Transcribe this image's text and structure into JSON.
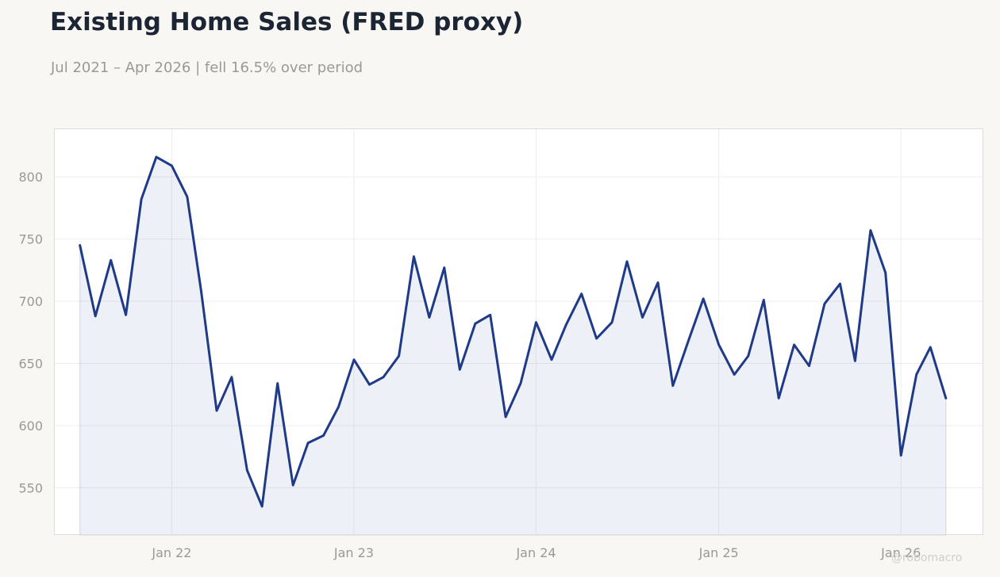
{
  "header": {
    "title": "Existing Home Sales (FRED proxy)",
    "subtitle": "Jul 2021 – Apr 2026 | fell 16.5% over period"
  },
  "watermark": "@robomacro",
  "colors": {
    "line": "#1f3a87",
    "fill": "#1f3a87",
    "background": "#f8f7f4",
    "plot_background": "#ffffff"
  },
  "chart_data": {
    "type": "area",
    "title": "Existing Home Sales (FRED proxy)",
    "subtitle": "Jul 2021 – Apr 2026 | fell 16.5% over period",
    "xlabel": "",
    "ylabel": "",
    "x": [
      "2021-07",
      "2021-08",
      "2021-09",
      "2021-10",
      "2021-11",
      "2021-12",
      "2022-01",
      "2022-02",
      "2022-03",
      "2022-04",
      "2022-05",
      "2022-06",
      "2022-07",
      "2022-08",
      "2022-09",
      "2022-10",
      "2022-11",
      "2022-12",
      "2023-01",
      "2023-02",
      "2023-03",
      "2023-04",
      "2023-05",
      "2023-06",
      "2023-07",
      "2023-08",
      "2023-09",
      "2023-10",
      "2023-11",
      "2023-12",
      "2024-01",
      "2024-02",
      "2024-03",
      "2024-04",
      "2024-05",
      "2024-06",
      "2024-07",
      "2024-08",
      "2024-09",
      "2024-10",
      "2024-11",
      "2024-12",
      "2025-01",
      "2025-02",
      "2025-03",
      "2025-04",
      "2025-05",
      "2025-06",
      "2025-07",
      "2025-08",
      "2025-09",
      "2025-10",
      "2025-11",
      "2025-12",
      "2026-01",
      "2026-02",
      "2026-03",
      "2026-04"
    ],
    "series": [
      {
        "values": [
          745,
          688,
          733,
          689,
          782,
          816,
          809,
          784,
          708,
          612,
          639,
          564,
          535,
          634,
          552,
          586,
          592,
          615,
          653,
          633,
          639,
          656,
          736,
          687,
          727,
          645,
          682,
          689,
          607,
          634,
          683,
          653,
          681,
          706,
          670,
          683,
          732,
          687,
          715,
          632,
          668,
          702,
          665,
          641,
          656,
          701,
          622,
          665,
          648,
          698,
          714,
          652,
          757,
          723,
          576,
          641,
          663,
          622
        ]
      }
    ],
    "x_ticks": [
      "Jan 22",
      "Jan 23",
      "Jan 24",
      "Jan 25",
      "Jan 26"
    ],
    "x_tick_dates": [
      "2022-01",
      "2023-01",
      "2024-01",
      "2025-01",
      "2026-01"
    ],
    "y_ticks": [
      550,
      600,
      650,
      700,
      750,
      800
    ],
    "ylim": [
      512,
      839
    ],
    "xlim": [
      "2021-05-10",
      "2026-06-15"
    ],
    "grid": true,
    "legend": "none"
  }
}
